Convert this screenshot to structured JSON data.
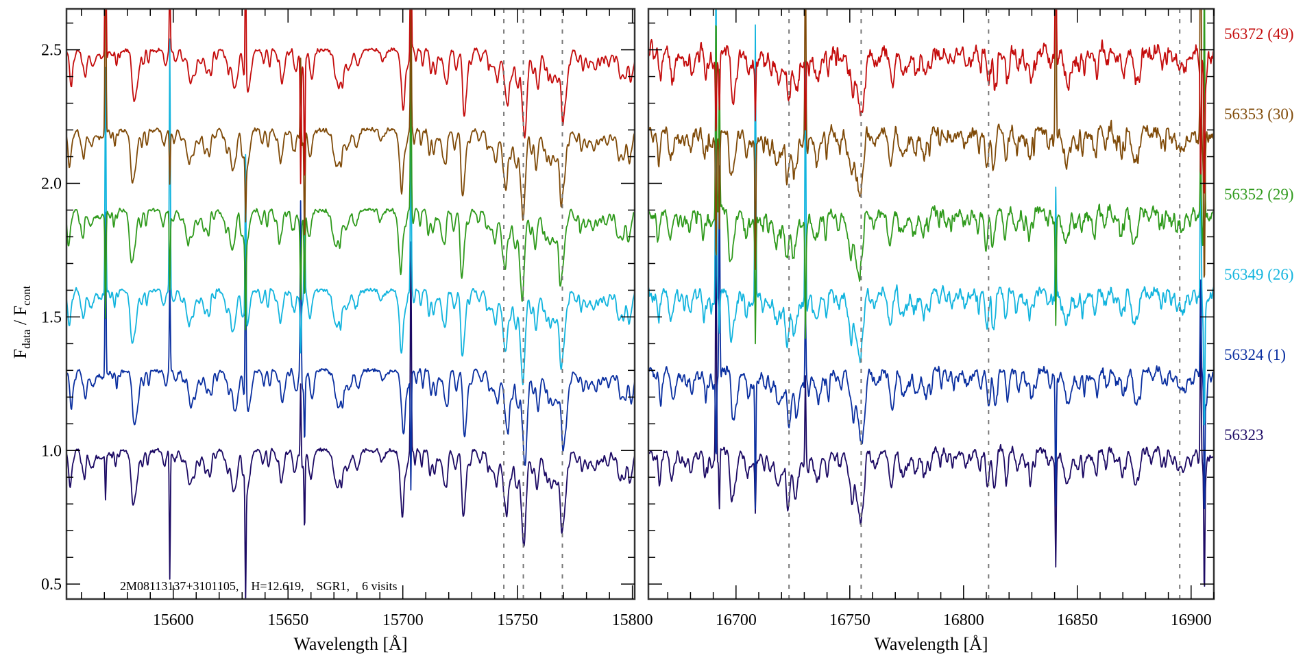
{
  "chart_data": {
    "type": "line",
    "title": "",
    "ylabel": {
      "main1": "F",
      "sub1": "data",
      "sep": " / ",
      "main2": "F",
      "sub2": "cont"
    },
    "ylim": [
      0.444,
      2.653
    ],
    "yticks": [
      0.5,
      1.0,
      1.5,
      2.0,
      2.5
    ],
    "ytick_labels": [
      "0.5",
      "1.0",
      "1.5",
      "2.0",
      "2.5"
    ],
    "yminor_step": 0.1,
    "grid": false,
    "annotation": "2M08113137+3101105,    H=12.619,    SGR1,    6 visits",
    "panels": [
      {
        "xlabel": "Wavelength [Å]",
        "xlim": [
          15553.5,
          15801
        ],
        "xticks": [
          15600,
          15650,
          15700,
          15750,
          15800
        ],
        "xtick_labels": [
          "15600",
          "15650",
          "15700",
          "15750",
          "15800"
        ],
        "xminor_step": 10,
        "dashed_lines": [
          15744,
          15752.5,
          15769.5
        ],
        "features": [
          [
            15745,
            0.2,
            1.1
          ],
          [
            15753,
            0.24,
            1.0
          ],
          [
            15770,
            0.24,
            1.2
          ],
          [
            15740,
            0.08,
            2.0
          ],
          [
            15765,
            0.1,
            2.5
          ],
          [
            15700,
            0.1,
            1.3
          ],
          [
            15680,
            0.07,
            1.0
          ],
          [
            15627,
            0.09,
            1.0
          ],
          [
            15608,
            0.06,
            1.2
          ],
          [
            15660,
            0.05,
            1.0
          ],
          [
            15718,
            0.06,
            1.0
          ],
          [
            15583,
            0.06,
            1.5
          ],
          [
            15565,
            0.05,
            1.0
          ]
        ],
        "sky_lines": [
          15570.5,
          15598.5,
          15631.5,
          15655.5,
          15657.2,
          15703.5
        ]
      },
      {
        "xlabel": "Wavelength [Å]",
        "xlim": [
          16661.5,
          16910
        ],
        "xticks": [
          16700,
          16750,
          16800,
          16850,
          16900
        ],
        "xtick_labels": [
          "16700",
          "16750",
          "16800",
          "16850",
          "16900"
        ],
        "xminor_step": 10,
        "dashed_lines": [
          16723.3,
          16755,
          16811,
          16895
        ],
        "features": [
          [
            16723,
            0.2,
            0.9
          ],
          [
            16719,
            0.08,
            1.5
          ],
          [
            16727,
            0.1,
            1.0
          ],
          [
            16755,
            0.22,
            1.0
          ],
          [
            16751,
            0.14,
            1.5
          ],
          [
            16768,
            0.1,
            1.1
          ],
          [
            16700,
            0.05,
            1.0
          ],
          [
            16740,
            0.05,
            1.0
          ],
          [
            16680,
            0.05,
            1.2
          ]
        ],
        "sky_lines": [
          16691.2,
          16692.7,
          16708.5,
          16730.5,
          16840.5,
          16904.2,
          16905.8
        ]
      }
    ],
    "series": [
      {
        "name": "56323",
        "label": "56323",
        "offset": 0.0,
        "color": "#1c0a64",
        "shift": 0.0
      },
      {
        "name": "56324",
        "label": "56324 (1)",
        "offset": 0.3,
        "color": "#0a2fa0",
        "shift": 0.5
      },
      {
        "name": "56349",
        "label": "56349 (26)",
        "offset": 0.6,
        "color": "#12b4de",
        "shift": -0.4
      },
      {
        "name": "56352",
        "label": "56352 (29)",
        "offset": 0.9,
        "color": "#2f9a1c",
        "shift": -0.7
      },
      {
        "name": "56353",
        "label": "56353 (30)",
        "offset": 1.2,
        "color": "#7f4a08",
        "shift": -0.3
      },
      {
        "name": "56372",
        "label": "56372 (49)",
        "offset": 1.5,
        "color": "#c40c0c",
        "shift": 0.4
      }
    ]
  }
}
